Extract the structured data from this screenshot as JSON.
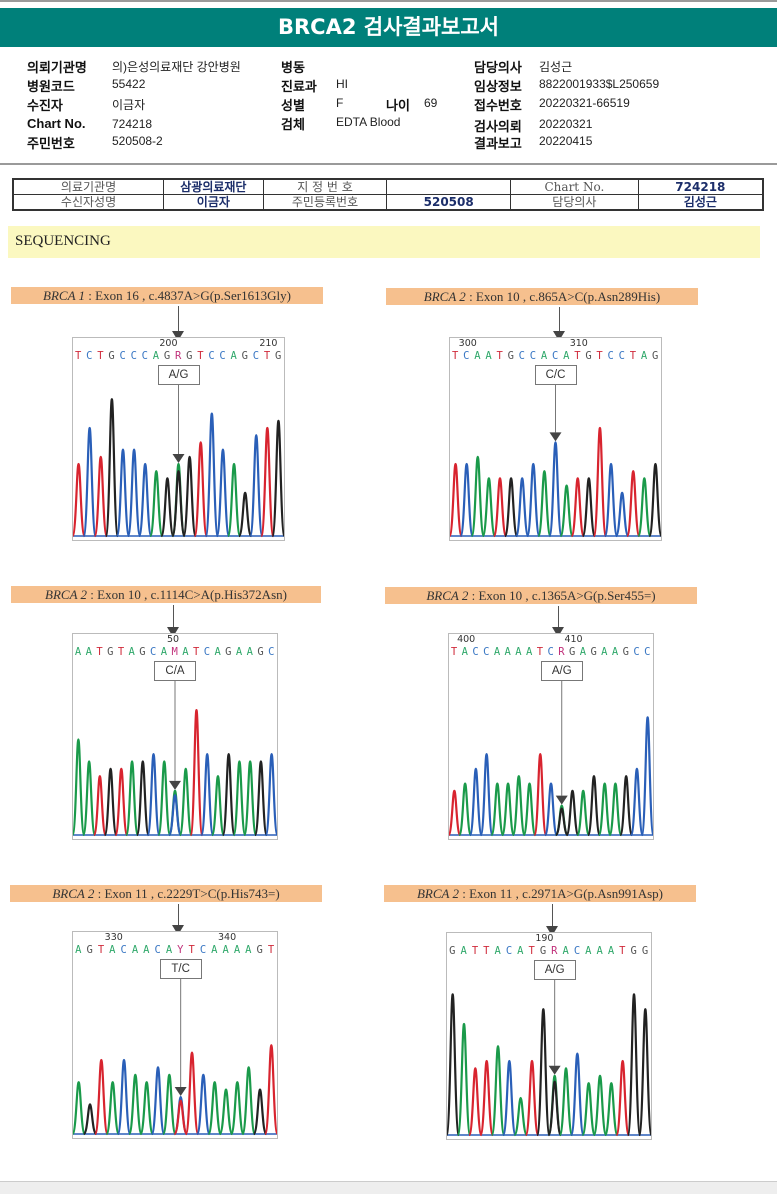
{
  "header": {
    "title": "BRCA2 검사결과보고서"
  },
  "info": {
    "col1": [
      {
        "label": "의뢰기관명",
        "value": "의)은성의료재단 강안병원"
      },
      {
        "label": "병원코드",
        "value": "55422"
      },
      {
        "label": "수진자",
        "value": "이금자"
      },
      {
        "label": "Chart No.",
        "value": "724218"
      },
      {
        "label": "주민번호",
        "value": "520508-2"
      }
    ],
    "col2": [
      {
        "label": "병동",
        "value": ""
      },
      {
        "label": "진료과",
        "value": "HI"
      },
      {
        "label": "성별",
        "value": "F"
      },
      {
        "label": "검체",
        "value": "EDTA Blood"
      }
    ],
    "age": {
      "label": "나이",
      "value": "69"
    },
    "col3": [
      {
        "label": "담당의사",
        "value": "김성근"
      },
      {
        "label": "임상정보",
        "value": "8822001933$L250659"
      },
      {
        "label": "접수번호",
        "value": "20220321-66519"
      },
      {
        "label": "검사의뢰",
        "value": "20220321"
      },
      {
        "label": "결과보고",
        "value": "20220415"
      }
    ]
  },
  "scan_table": {
    "row1": [
      "의료기관명",
      "삼광의료재단",
      "지 정 번 호",
      "",
      "Chart No.",
      "724218"
    ],
    "row2": [
      "수신자성명",
      "이금자",
      "주민등록번호",
      "520508",
      "담당의사",
      "김성근"
    ]
  },
  "section_title": "SEQUENCING",
  "chart_data": [
    {
      "type": "chromatogram",
      "gene": "BRCA 1",
      "variant": ": Exon 16 , c.4837A>G(p.Ser1613Gly)",
      "sequence": "TCTGCCCAGRGTCCAGCTG",
      "positions": [
        {
          "label": "200",
          "index": 8
        },
        {
          "label": "210",
          "index": 17
        }
      ],
      "genotype": "A/G",
      "variant_index": 9,
      "peaks": [
        "T",
        "C",
        "T",
        "G",
        "C",
        "C",
        "C",
        "A",
        "G",
        "R",
        "G",
        "T",
        "C",
        "C",
        "A",
        "G",
        "C",
        "T",
        "G"
      ],
      "heights": [
        0.5,
        0.75,
        0.55,
        0.95,
        0.6,
        0.6,
        0.5,
        0.45,
        0.4,
        0.5,
        0.55,
        0.65,
        0.85,
        0.6,
        0.5,
        0.3,
        0.7,
        0.75,
        0.8
      ]
    },
    {
      "type": "chromatogram",
      "gene": "BRCA 2",
      "variant": ": Exon 10 , c.865A>C(p.Asn289His)",
      "sequence": "TCAATGCCACATGTCCTAG",
      "positions": [
        {
          "label": "300",
          "index": 1
        },
        {
          "label": "310",
          "index": 11
        }
      ],
      "genotype": "C/C",
      "variant_index": 9,
      "peaks": [
        "T",
        "C",
        "A",
        "A",
        "T",
        "G",
        "C",
        "C",
        "A",
        "C",
        "A",
        "T",
        "G",
        "T",
        "C",
        "C",
        "T",
        "A",
        "G"
      ],
      "heights": [
        0.5,
        0.5,
        0.55,
        0.4,
        0.4,
        0.4,
        0.4,
        0.5,
        0.45,
        0.65,
        0.35,
        0.4,
        0.4,
        0.75,
        0.5,
        0.3,
        0.45,
        0.4,
        0.5
      ]
    },
    {
      "type": "chromatogram",
      "gene": "BRCA 2",
      "variant": ": Exon 10 , c.1114C>A(p.His372Asn)",
      "sequence": "AATGTAGCAMATCAGAAGC",
      "positions": [
        {
          "label": "50",
          "index": 9
        }
      ],
      "genotype": "C/A",
      "variant_index": 9,
      "peaks": [
        "A",
        "A",
        "T",
        "G",
        "T",
        "A",
        "G",
        "C",
        "A",
        "M",
        "A",
        "T",
        "C",
        "A",
        "G",
        "A",
        "A",
        "G",
        "C"
      ],
      "heights": [
        0.65,
        0.5,
        0.4,
        0.45,
        0.45,
        0.5,
        0.5,
        0.55,
        0.5,
        0.3,
        0.45,
        0.85,
        0.55,
        0.4,
        0.55,
        0.5,
        0.5,
        0.5,
        0.55
      ]
    },
    {
      "type": "chromatogram",
      "gene": "BRCA 2",
      "variant": ": Exon 10 , c.1365A>G(p.Ser455=)",
      "sequence": "TACCAAAATCRGAGAAGCC",
      "positions": [
        {
          "label": "400",
          "index": 1
        },
        {
          "label": "410",
          "index": 11
        }
      ],
      "genotype": "A/G",
      "variant_index": 10,
      "peaks": [
        "T",
        "A",
        "C",
        "C",
        "A",
        "A",
        "A",
        "A",
        "T",
        "C",
        "R",
        "G",
        "A",
        "G",
        "A",
        "A",
        "G",
        "C",
        "C"
      ],
      "heights": [
        0.3,
        0.35,
        0.45,
        0.55,
        0.35,
        0.35,
        0.4,
        0.35,
        0.55,
        0.35,
        0.2,
        0.3,
        0.3,
        0.4,
        0.35,
        0.35,
        0.4,
        0.45,
        0.8
      ]
    },
    {
      "type": "chromatogram",
      "gene": "BRCA 2",
      "variant": ": Exon 11 , c.2229T>C(p.His743=)",
      "sequence": "AGTACAACAYTCAAAAGT",
      "positions": [
        {
          "label": "330",
          "index": 3
        },
        {
          "label": "340",
          "index": 13
        }
      ],
      "genotype": "T/C",
      "variant_index": 9,
      "peaks": [
        "A",
        "G",
        "T",
        "A",
        "C",
        "A",
        "A",
        "C",
        "A",
        "Y",
        "T",
        "C",
        "A",
        "A",
        "A",
        "A",
        "G",
        "T"
      ],
      "heights": [
        0.35,
        0.2,
        0.5,
        0.35,
        0.5,
        0.4,
        0.35,
        0.45,
        0.4,
        0.25,
        0.55,
        0.4,
        0.35,
        0.3,
        0.35,
        0.45,
        0.3,
        0.6
      ]
    },
    {
      "type": "chromatogram",
      "gene": "BRCA 2",
      "variant": ": Exon 11 , c.2971A>G(p.Asn991Asp)",
      "sequence": "GATTACATGRACAAATGG",
      "positions": [
        {
          "label": "190",
          "index": 8
        }
      ],
      "genotype": "A/G",
      "variant_index": 9,
      "peaks": [
        "G",
        "A",
        "T",
        "T",
        "A",
        "C",
        "A",
        "T",
        "G",
        "R",
        "A",
        "C",
        "A",
        "A",
        "A",
        "T",
        "G",
        "G"
      ],
      "heights": [
        0.95,
        0.75,
        0.45,
        0.5,
        0.6,
        0.5,
        0.25,
        0.5,
        0.85,
        0.4,
        0.45,
        0.55,
        0.35,
        0.4,
        0.35,
        0.5,
        0.95,
        0.85
      ]
    }
  ]
}
